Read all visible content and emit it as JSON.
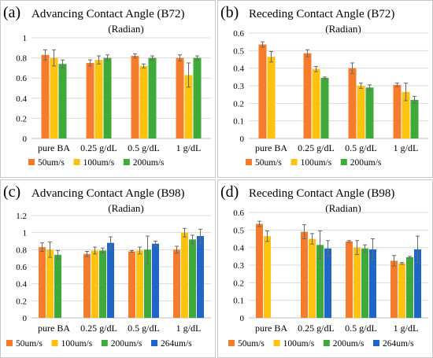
{
  "colors": {
    "50um/s": "#F47C2C",
    "100um/s": "#FFC20E",
    "200um/s": "#3EAA3A",
    "264um/s": "#1F67C7"
  },
  "chart_data": [
    {
      "letter": "(a)",
      "type": "bar",
      "title": "Advancing Contact Angle (B72)",
      "subtitle": "(Radian)",
      "categories": [
        "pure BA",
        "0.25 g/dL",
        "0.5 g/dL",
        "1 g/dL"
      ],
      "ylim": [
        0,
        1
      ],
      "yticks": [
        0,
        0.2,
        0.4,
        0.6,
        0.8,
        1
      ],
      "grid": true,
      "legend": "bottom",
      "series": [
        {
          "name": "50um/s",
          "values": [
            0.83,
            0.75,
            0.82,
            0.8
          ],
          "errors": [
            0.05,
            0.03,
            0.02,
            0.03
          ]
        },
        {
          "name": "100um/s",
          "values": [
            0.8,
            0.78,
            0.72,
            0.63
          ],
          "errors": [
            0.08,
            0.04,
            0.02,
            0.12
          ]
        },
        {
          "name": "200um/s",
          "values": [
            0.74,
            0.8,
            0.8,
            0.8
          ],
          "errors": [
            0.04,
            0.03,
            0.02,
            0.02
          ]
        }
      ]
    },
    {
      "letter": "(b)",
      "type": "bar",
      "title": "Receding Contact Angle (B72)",
      "subtitle": "(Radian)",
      "categories": [
        "pure BA",
        "0.25 g/dL",
        "0.5 g/dL",
        "1 g/dL"
      ],
      "ylim": [
        0,
        0.6
      ],
      "yticks": [
        0,
        0.1,
        0.2,
        0.3,
        0.4,
        0.5,
        0.6
      ],
      "grid": true,
      "legend": "bottom",
      "series": [
        {
          "name": "50um/s",
          "values": [
            0.535,
            0.485,
            0.4,
            0.305
          ],
          "errors": [
            0.015,
            0.02,
            0.03,
            0.01
          ]
        },
        {
          "name": "100um/s",
          "values": [
            0.465,
            0.395,
            0.3,
            0.265
          ],
          "errors": [
            0.03,
            0.015,
            0.015,
            0.05
          ]
        },
        {
          "name": "200um/s",
          "values": [
            null,
            0.345,
            0.29,
            0.22
          ],
          "errors": [
            0,
            0.005,
            0.015,
            0.02
          ]
        }
      ]
    },
    {
      "letter": "(c)",
      "type": "bar",
      "title": "Advancing Contact Angle (B98)",
      "subtitle": "(Radian)",
      "categories": [
        "pure BA",
        "0.25 g/dL",
        "0.5 g/dL",
        "1 g/dL"
      ],
      "ylim": [
        0,
        1.2
      ],
      "yticks": [
        0,
        0.2,
        0.4,
        0.6,
        0.8,
        1,
        1.2
      ],
      "grid": true,
      "legend": "bottom",
      "series": [
        {
          "name": "50um/s",
          "values": [
            0.83,
            0.75,
            0.78,
            0.8
          ],
          "errors": [
            0.05,
            0.03,
            0.01,
            0.04
          ]
        },
        {
          "name": "100um/s",
          "values": [
            0.8,
            0.79,
            0.79,
            1.0
          ],
          "errors": [
            0.09,
            0.04,
            0.04,
            0.05
          ]
        },
        {
          "name": "200um/s",
          "values": [
            0.74,
            0.79,
            0.8,
            0.92
          ],
          "errors": [
            0.05,
            0.03,
            0.16,
            0.05
          ]
        },
        {
          "name": "264um/s",
          "values": [
            null,
            0.88,
            0.87,
            0.96
          ],
          "errors": [
            0,
            0.07,
            0.03,
            0.08
          ]
        }
      ]
    },
    {
      "letter": "(d)",
      "type": "bar",
      "title": "Receding Contact Angle (B98)",
      "subtitle": "(Radian)",
      "categories": [
        "pure BA",
        "0.25 g/dL",
        "0.5 g/dL",
        "1 g/dL"
      ],
      "ylim": [
        0,
        0.6
      ],
      "yticks": [
        0,
        0.1,
        0.2,
        0.3,
        0.4,
        0.5,
        0.6
      ],
      "grid": true,
      "legend": "bottom",
      "series": [
        {
          "name": "50um/s",
          "values": [
            0.535,
            0.49,
            0.435,
            0.325
          ],
          "errors": [
            0.015,
            0.04,
            0.005,
            0.03
          ]
        },
        {
          "name": "100um/s",
          "values": [
            0.465,
            0.45,
            0.4,
            0.31
          ],
          "errors": [
            0.03,
            0.03,
            0.04,
            0.005
          ]
        },
        {
          "name": "200um/s",
          "values": [
            null,
            0.415,
            0.395,
            0.345
          ],
          "errors": [
            0,
            0.08,
            0.02,
            0.005
          ]
        },
        {
          "name": "264um/s",
          "values": [
            null,
            0.395,
            0.39,
            0.39
          ],
          "errors": [
            0,
            0.045,
            0.06,
            0.075
          ]
        }
      ]
    }
  ]
}
